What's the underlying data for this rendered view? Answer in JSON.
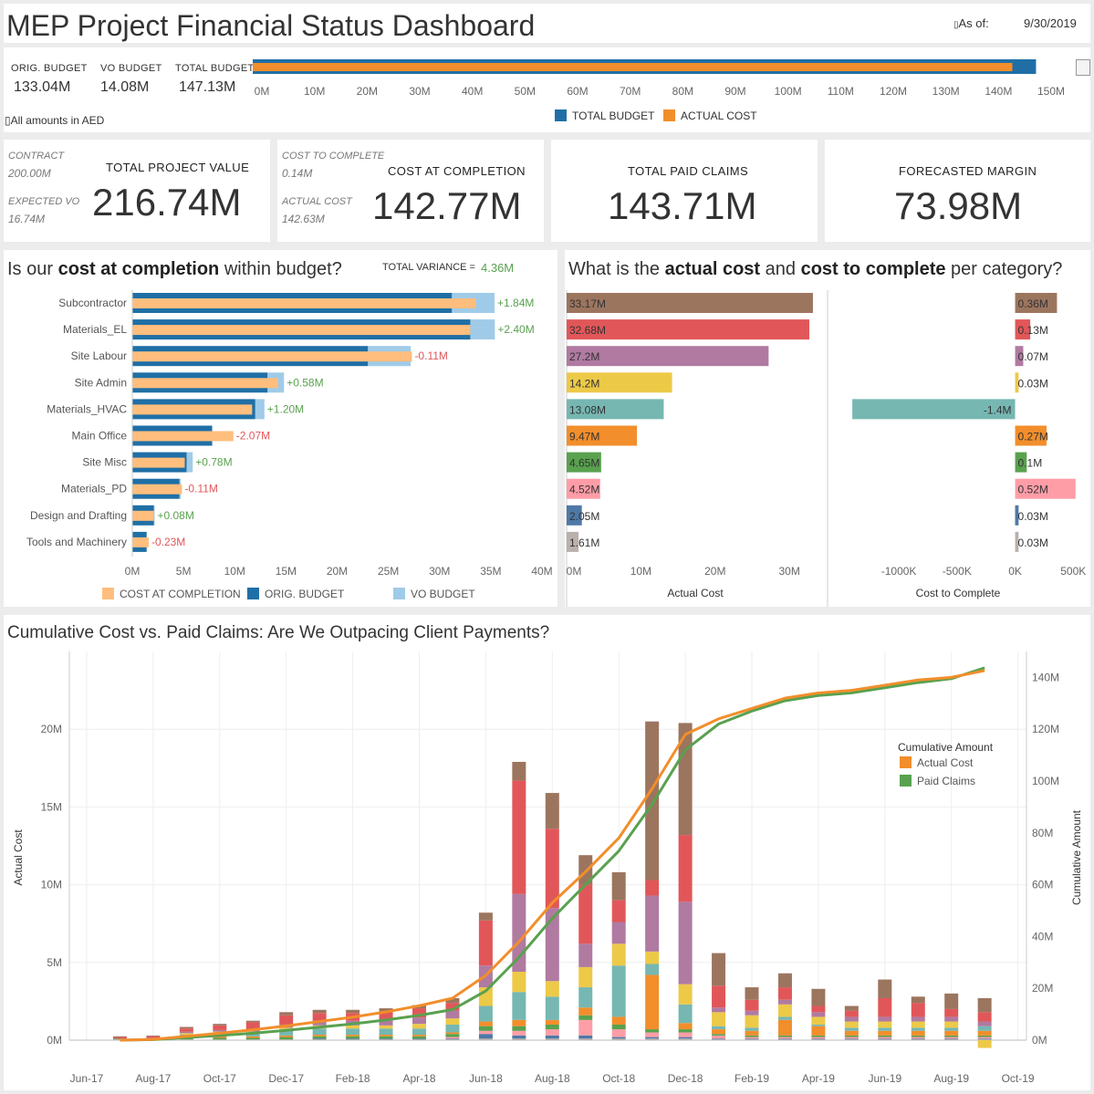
{
  "header": {
    "title": "MEP Project Financial Status Dashboard",
    "as_of_label": "As of:",
    "as_of_date": "9/30/2019"
  },
  "budget_bar": {
    "orig_budget_label": "ORIG. BUDGET",
    "orig_budget_value": "133.04M",
    "vo_budget_label": "VO BUDGET",
    "vo_budget_value": "14.08M",
    "total_budget_label": "TOTAL BUDGET",
    "total_budget_value": "147.13M",
    "note": "All amounts in AED",
    "legend_total": "TOTAL BUDGET",
    "legend_actual": "ACTUAL COST"
  },
  "kpis": {
    "contract_label": "CONTRACT",
    "contract_value": "200.00M",
    "expected_vo_label": "EXPECTED VO",
    "expected_vo_value": "16.74M",
    "total_project_value_title": "TOTAL PROJECT VALUE",
    "total_project_value": "216.74M",
    "cost_to_complete_label": "COST TO COMPLETE",
    "cost_to_complete_value": "0.14M",
    "actual_cost_label": "ACTUAL COST",
    "actual_cost_value": "142.63M",
    "cost_at_completion_title": "COST AT COMPLETION",
    "cost_at_completion": "142.77M",
    "total_paid_claims_title": "TOTAL PAID CLAIMS",
    "total_paid_claims": "143.71M",
    "forecasted_margin_title": "FORECASTED MARGIN",
    "forecasted_margin": "73.98M"
  },
  "variance_panel": {
    "title_pre": "Is our ",
    "title_b1": "cost at completion",
    "title_post": " within budget?",
    "total_variance_label": "TOTAL VARIANCE =",
    "total_variance_value": "4.36M"
  },
  "category_panel": {
    "title_pre": "What is the ",
    "title_b1": "actual cost",
    "title_mid": " and ",
    "title_b2": "cost to complete",
    "title_post": " per category?"
  },
  "timeline_panel": {
    "title": "Cumulative Cost vs. Paid Claims: Are We Outpacing Client Payments?"
  },
  "colors": {
    "total_budget": "#1f6fa6",
    "actual_cost": "#f28e2b",
    "orig_budget": "#1f6fa6",
    "vo_budget": "#a0cbe8",
    "cost_at_completion": "#ffbe7d",
    "positive": "#59a14f",
    "negative": "#e15759",
    "cum_actual": "#f28e2b",
    "cum_paid": "#59a14f"
  },
  "chart_data": [
    {
      "type": "bar",
      "orientation": "horizontal",
      "categories": [
        "Budget"
      ],
      "series": [
        {
          "name": "TOTAL BUDGET",
          "values": [
            147.13
          ]
        },
        {
          "name": "ACTUAL COST",
          "values": [
            142.63
          ]
        }
      ],
      "x_ticks": [
        "0M",
        "10M",
        "20M",
        "30M",
        "40M",
        "50M",
        "60M",
        "70M",
        "80M",
        "90M",
        "100M",
        "110M",
        "120M",
        "130M",
        "140M",
        "150M"
      ],
      "xlim": [
        0,
        150
      ],
      "units": "M"
    },
    {
      "type": "bar",
      "orientation": "horizontal",
      "categories": [
        "Subcontractor",
        "Materials_EL",
        "Site Labour",
        "Site Admin",
        "Materials_HVAC",
        "Main Office",
        "Site Misc",
        "Materials_PD",
        "Design and Drafting",
        "Tools and Machinery"
      ],
      "series": [
        {
          "name": "COST AT COMPLETION",
          "values": [
            33.53,
            33.0,
            27.3,
            14.23,
            11.7,
            9.87,
            5.12,
            4.85,
            2.1,
            1.6
          ]
        },
        {
          "name": "ORIG. BUDGET",
          "values": [
            31.2,
            33.0,
            23.0,
            13.2,
            12.0,
            7.8,
            5.3,
            4.6,
            2.1,
            1.4
          ]
        },
        {
          "name": "VO BUDGET",
          "values": [
            4.17,
            2.4,
            4.19,
            1.61,
            0.9,
            0.0,
            0.6,
            0.14,
            0.08,
            0.0
          ]
        }
      ],
      "variance_labels": [
        "+1.84M",
        "+2.40M",
        "-0.11M",
        "+0.58M",
        "+1.20M",
        "-2.07M",
        "+0.78M",
        "-0.11M",
        "+0.08M",
        "-0.23M"
      ],
      "x_ticks": [
        "0M",
        "5M",
        "10M",
        "15M",
        "20M",
        "25M",
        "30M",
        "35M",
        "40M"
      ],
      "xlim": [
        0,
        40
      ],
      "units": "M"
    },
    {
      "type": "bar",
      "orientation": "horizontal",
      "xlabel": "Actual Cost",
      "categories": [
        "Subcontractor",
        "Materials_EL",
        "Site Labour",
        "Site Admin",
        "Materials_HVAC",
        "Main Office",
        "Site Misc",
        "Materials_PD",
        "Design and Drafting",
        "Tools and Machinery"
      ],
      "values": [
        33.17,
        32.68,
        27.2,
        14.2,
        13.08,
        9.47,
        4.65,
        4.52,
        2.05,
        1.61
      ],
      "labels": [
        "33.17M",
        "32.68M",
        "27.2M",
        "14.2M",
        "13.08M",
        "9.47M",
        "4.65M",
        "4.52M",
        "2.05M",
        "1.61M"
      ],
      "bar_colors": [
        "#9c755f",
        "#e15759",
        "#b07aa1",
        "#edc948",
        "#76b7b2",
        "#f28e2b",
        "#59a14f",
        "#ff9da7",
        "#4e79a7",
        "#bab0ac"
      ],
      "x_ticks": [
        "0M",
        "10M",
        "20M",
        "30M"
      ],
      "xlim": [
        0,
        36
      ]
    },
    {
      "type": "bar",
      "orientation": "horizontal",
      "xlabel": "Cost to Complete",
      "categories": [
        "Subcontractor",
        "Materials_EL",
        "Site Labour",
        "Site Admin",
        "Materials_HVAC",
        "Main Office",
        "Site Misc",
        "Materials_PD",
        "Design and Drafting",
        "Tools and Machinery"
      ],
      "values": [
        0.36,
        0.13,
        0.07,
        0.03,
        -1.4,
        0.27,
        0.1,
        0.52,
        0.03,
        0.03
      ],
      "labels": [
        "0.36M",
        "0.13M",
        "0.07M",
        "0.03M",
        "-1.4M",
        "0.27M",
        "0.1M",
        "0.52M",
        "0.03M",
        "0.03M"
      ],
      "bar_colors": [
        "#9c755f",
        "#e15759",
        "#b07aa1",
        "#edc948",
        "#76b7b2",
        "#f28e2b",
        "#59a14f",
        "#ff9da7",
        "#4e79a7",
        "#bab0ac"
      ],
      "x_ticks": [
        "-1000K",
        "-500K",
        "0K",
        "500K"
      ],
      "xlim": [
        -1.55,
        0.6
      ]
    },
    {
      "type": "bar",
      "stacked": true,
      "ylabel": "Actual Cost",
      "y2label": "Cumulative Amount",
      "ylim": [
        0,
        25
      ],
      "y2lim": [
        0,
        150
      ],
      "y_ticks": [
        "0M",
        "5M",
        "10M",
        "15M",
        "20M"
      ],
      "y2_ticks": [
        "0M",
        "20M",
        "40M",
        "60M",
        "80M",
        "100M",
        "120M",
        "140M"
      ],
      "x_ticks": [
        "Jun-17",
        "Aug-17",
        "Oct-17",
        "Dec-17",
        "Feb-18",
        "Apr-18",
        "Jun-18",
        "Aug-18",
        "Oct-18",
        "Dec-18",
        "Feb-19",
        "Apr-19",
        "Jun-19",
        "Aug-19",
        "Oct-19"
      ],
      "x": [
        "Jul-17",
        "Aug-17",
        "Sep-17",
        "Oct-17",
        "Nov-17",
        "Dec-17",
        "Jan-18",
        "Feb-18",
        "Mar-18",
        "Apr-18",
        "May-18",
        "Jun-18",
        "Jul-18",
        "Aug-18",
        "Sep-18",
        "Oct-18",
        "Nov-18",
        "Dec-18",
        "Jan-19",
        "Feb-19",
        "Mar-19",
        "Apr-19",
        "May-19",
        "Jun-19",
        "Jul-19",
        "Aug-19",
        "Sep-19"
      ],
      "stack_series": [
        {
          "name": "Tools and Machinery",
          "color": "#bab0ac",
          "values": [
            0.05,
            0.05,
            0.05,
            0.05,
            0.05,
            0.05,
            0.05,
            0.05,
            0.05,
            0.05,
            0.05,
            0.1,
            0.1,
            0.1,
            0.1,
            0.1,
            0.1,
            0.1,
            0.05,
            0.05,
            0.05,
            0.05,
            0.05,
            0.05,
            0.05,
            0.05,
            0.05
          ]
        },
        {
          "name": "Design and Drafting",
          "color": "#4e79a7",
          "values": [
            0,
            0,
            0,
            0,
            0,
            0,
            0.05,
            0.05,
            0.05,
            0.05,
            0.05,
            0.3,
            0.2,
            0.2,
            0.2,
            0.1,
            0.1,
            0.1,
            0.05,
            0.05,
            0.05,
            0.05,
            0.05,
            0.05,
            0.05,
            0.05,
            0.05
          ]
        },
        {
          "name": "Materials_PD",
          "color": "#ff9da7",
          "values": [
            0,
            0,
            0,
            0,
            0,
            0,
            0,
            0,
            0,
            0,
            0.1,
            0.2,
            0.3,
            0.4,
            1.0,
            0.5,
            0.3,
            0.3,
            0.2,
            0.1,
            0.1,
            0.1,
            0.1,
            0.1,
            0.1,
            0.1,
            0.1
          ]
        },
        {
          "name": "Site Misc",
          "color": "#59a14f",
          "values": [
            0.05,
            0.05,
            0.1,
            0.1,
            0.1,
            0.15,
            0.15,
            0.15,
            0.15,
            0.15,
            0.2,
            0.3,
            0.3,
            0.3,
            0.3,
            0.3,
            0.2,
            0.2,
            0.1,
            0.1,
            0.1,
            0.1,
            0.1,
            0.1,
            0.1,
            0.1,
            0.1
          ]
        },
        {
          "name": "Main Office",
          "color": "#f28e2b",
          "values": [
            0,
            0,
            0.1,
            0.1,
            0.1,
            0.1,
            0.1,
            0.1,
            0.1,
            0.1,
            0.1,
            0.3,
            0.4,
            0.3,
            0.5,
            0.5,
            3.5,
            0.4,
            0.3,
            0.3,
            1.0,
            0.6,
            0.3,
            0.3,
            0.3,
            0.3,
            0.3
          ]
        },
        {
          "name": "Materials_HVAC",
          "color": "#76b7b2",
          "values": [
            0,
            0,
            0.1,
            0.2,
            0.2,
            0.3,
            0.4,
            0.4,
            0.4,
            0.4,
            0.5,
            1.0,
            1.8,
            1.5,
            1.3,
            3.3,
            0.7,
            1.2,
            0.2,
            0.2,
            0.2,
            0.1,
            0.2,
            0.2,
            0.2,
            0.2,
            0.3
          ]
        },
        {
          "name": "Site Admin",
          "color": "#edc948",
          "values": [
            0,
            0,
            0.1,
            0.1,
            0.1,
            0.2,
            0.2,
            0.2,
            0.2,
            0.3,
            0.4,
            1.2,
            1.3,
            1.0,
            1.3,
            1.4,
            0.8,
            1.3,
            0.9,
            0.8,
            0.8,
            0.5,
            0.4,
            0.4,
            0.4,
            0.4,
            -0.5
          ]
        },
        {
          "name": "Site Labour",
          "color": "#b07aa1",
          "values": [
            0,
            0.05,
            0.1,
            0.1,
            0.1,
            0.2,
            0.3,
            0.3,
            0.3,
            0.4,
            0.5,
            1.4,
            5.0,
            4.7,
            1.5,
            1.4,
            3.6,
            5.3,
            0.3,
            0.3,
            0.3,
            0.3,
            0.3,
            0.3,
            0.3,
            0.3,
            0.3
          ]
        },
        {
          "name": "Materials_EL",
          "color": "#e15759",
          "values": [
            0.1,
            0.1,
            0.2,
            0.3,
            0.5,
            0.6,
            0.5,
            0.5,
            0.6,
            0.6,
            0.5,
            2.9,
            7.3,
            5.1,
            3.8,
            1.4,
            1.0,
            4.3,
            1.4,
            0.7,
            0.8,
            0.4,
            0.4,
            1.2,
            0.9,
            0.5,
            0.6
          ]
        },
        {
          "name": "Subcontractor",
          "color": "#9c755f",
          "values": [
            0.05,
            0.05,
            0.1,
            0.1,
            0.1,
            0.2,
            0.2,
            0.2,
            0.2,
            0.2,
            0.3,
            0.5,
            1.2,
            2.3,
            1.9,
            1.8,
            10.2,
            7.2,
            2.1,
            0.8,
            0.9,
            1.1,
            0.3,
            1.2,
            0.4,
            1.0,
            0.9
          ]
        }
      ],
      "line_series": [
        {
          "name": "Actual Cost",
          "values": [
            0,
            0.3,
            1.5,
            2.7,
            4.0,
            5.5,
            7.2,
            8.9,
            10.9,
            13.3,
            16.2,
            25,
            38,
            53,
            65,
            78,
            97,
            118,
            124,
            128,
            132,
            134,
            135,
            137,
            139,
            140,
            142.63
          ]
        },
        {
          "name": "Paid Claims",
          "values": [
            0,
            0.2,
            1.0,
            1.8,
            2.7,
            3.8,
            5.0,
            6.3,
            7.8,
            9.6,
            11.8,
            19,
            32,
            47,
            60,
            73,
            91,
            112,
            122,
            127,
            131,
            133,
            134,
            136,
            138,
            139.5,
            143.71
          ]
        }
      ],
      "legend_title": "Cumulative Amount",
      "legend_entries": [
        "Actual Cost",
        "Paid Claims"
      ]
    }
  ]
}
